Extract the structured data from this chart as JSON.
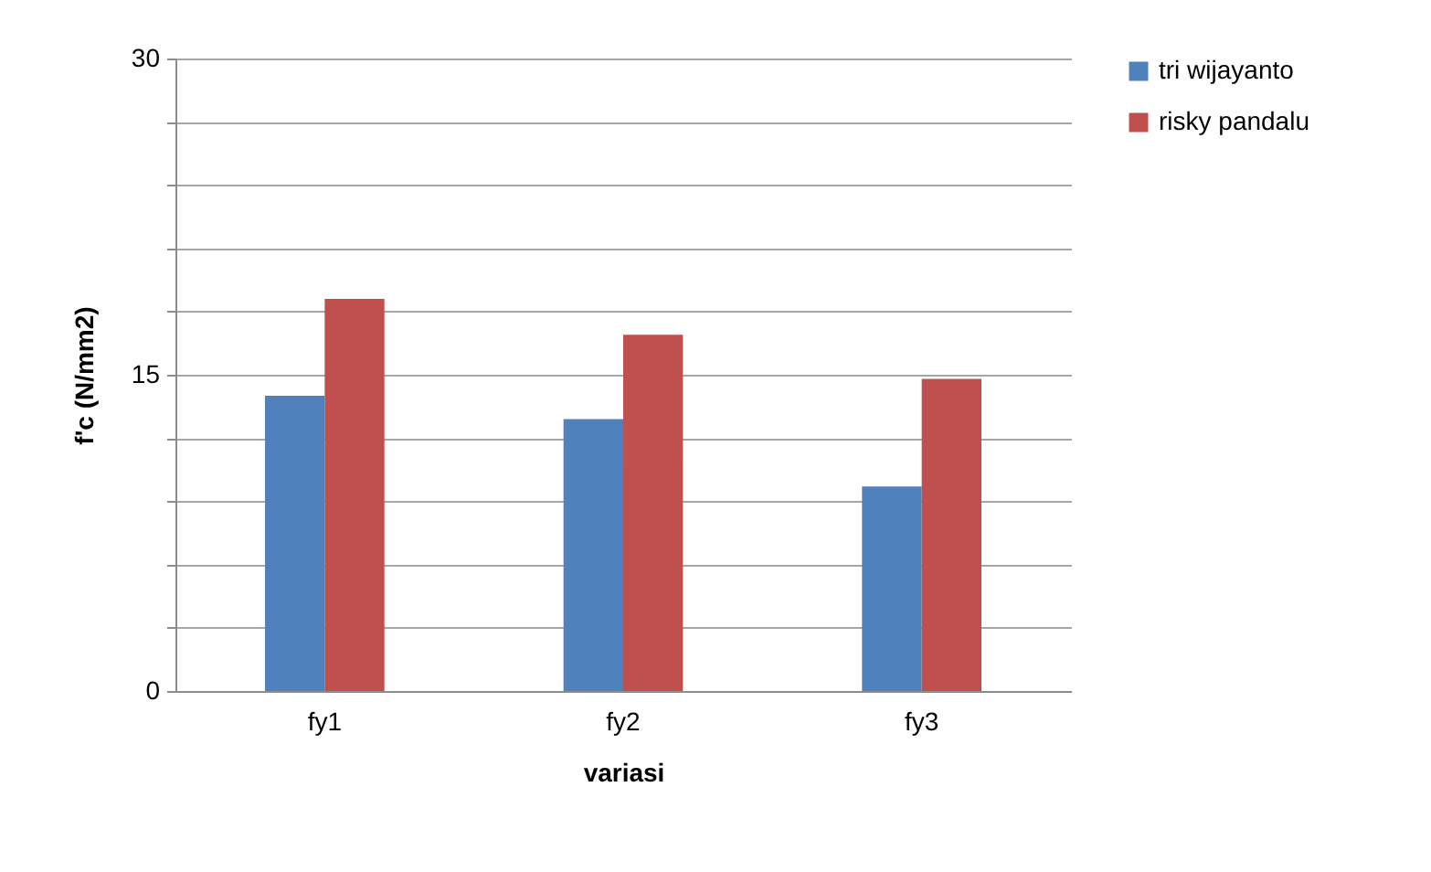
{
  "chart_data": {
    "type": "bar",
    "xlabel": "variasi",
    "ylabel": "f'c (N/mm2)",
    "categories": [
      "fy1",
      "fy2",
      "fy3"
    ],
    "series": [
      {
        "name": "tri wijayanto",
        "color": "#4f81bd",
        "values": [
          14.0,
          12.9,
          9.7
        ]
      },
      {
        "name": "risky pandalu",
        "color": "#c0504d",
        "values": [
          18.6,
          16.9,
          14.8
        ]
      }
    ],
    "ylim": [
      0,
      30
    ],
    "yticks": [
      0,
      {
        "value": 3,
        "label": null
      },
      {
        "value": 6,
        "label": null
      },
      {
        "value": 9,
        "label": null
      },
      {
        "value": 12,
        "label": null
      },
      15,
      {
        "value": 18,
        "label": null
      },
      {
        "value": 21,
        "label": null
      },
      {
        "value": 24,
        "label": null
      },
      {
        "value": 27,
        "label": null
      },
      30
    ],
    "grid": "y",
    "legend": "right"
  }
}
